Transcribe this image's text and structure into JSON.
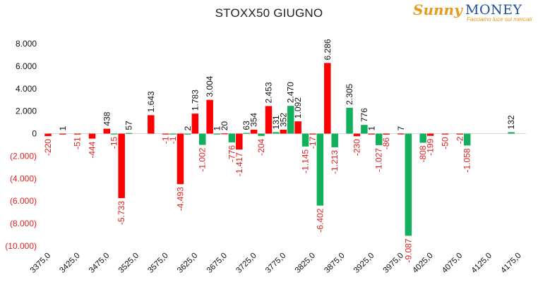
{
  "chart_data": {
    "type": "bar",
    "title": "STOXX50 GIUGNO",
    "xlabel": "",
    "ylabel": "",
    "ylim": [
      -10000,
      8000
    ],
    "yticks": [
      8000,
      6000,
      4000,
      2000,
      0,
      -2000,
      -4000,
      -6000,
      -8000,
      -10000
    ],
    "ytick_labels": [
      "8.000",
      "6.000",
      "4.000",
      "2.000",
      "0",
      "(2.000)",
      "(4.000)",
      "(6.000)",
      "(8.000)",
      "(10.000)"
    ],
    "categories": [
      "3375,0",
      "3400,0",
      "3425,0",
      "3450,0",
      "3475,0",
      "3500,0",
      "3525,0",
      "3550,0",
      "3575,0",
      "3600,0",
      "3625,0",
      "3650,0",
      "3675,0",
      "3700,0",
      "3725,0",
      "3750,0",
      "3775,0",
      "3800,0",
      "3825,0",
      "3850,0",
      "3875,0",
      "3900,0",
      "3925,0",
      "3950,0",
      "3975,0",
      "4000,0",
      "4025,0",
      "4050,0",
      "4075,0",
      "4100,0",
      "4125,0",
      "4150,0",
      "4175,0"
    ],
    "xtick_labels": [
      "3375,0",
      "3425,0",
      "3475,0",
      "3525,0",
      "3575,0",
      "3625,0",
      "3675,0",
      "3725,0",
      "3775,0",
      "3825,0",
      "3875,0",
      "3925,0",
      "3975,0",
      "4025,0",
      "4075,0",
      "4125,0",
      "4175,0"
    ],
    "series": [
      {
        "color": "#ff0000",
        "values": [
          -220,
          1,
          -51,
          -444,
          438,
          -5733,
          0,
          1643,
          -1,
          -4493,
          1783,
          3004,
          20,
          -1417,
          354,
          2453,
          352,
          1092,
          -17,
          6286,
          0,
          -230,
          1,
          -86,
          7,
          0,
          -199,
          -50,
          -2,
          0,
          0,
          0,
          0
        ],
        "labels": [
          "-220",
          "1",
          "-51",
          "-444",
          "438",
          "-5.733",
          "",
          "1.643",
          "-1",
          "-4.493",
          "1.783",
          "3.004",
          "20",
          "-1.417",
          "354",
          "2.453",
          "352",
          "1.092",
          "-17",
          "6.286",
          "",
          "-230",
          "1",
          "-86",
          "7",
          "",
          "-199",
          "-50",
          "-2",
          "",
          "",
          "",
          ""
        ]
      },
      {
        "color": "#11b05c",
        "values": [
          0,
          0,
          0,
          0,
          -15,
          57,
          0,
          0,
          -1,
          2,
          -1002,
          1,
          -776,
          63,
          -204,
          131,
          2470,
          -1145,
          -6402,
          -1213,
          2305,
          776,
          -1027,
          0,
          -9087,
          -808,
          0,
          0,
          -1058,
          0,
          0,
          132,
          0
        ],
        "labels": [
          "",
          "",
          "",
          "",
          "-15",
          "57",
          "",
          "",
          "-1",
          "2",
          "-1.002",
          "1",
          "-776",
          "63",
          "-204",
          "131",
          "2.470",
          "-1.145",
          "-6.402",
          "-1.213",
          "2.305",
          "776",
          "-1.027",
          "",
          "-9.087",
          "-808",
          "",
          "",
          "-1.058",
          "",
          "",
          "132",
          ""
        ]
      }
    ],
    "grid": false,
    "legend": "none"
  },
  "logo": {
    "word1": "Sunny",
    "word2": "MONEY",
    "tagline": "Facciamo luce sui mercati"
  }
}
